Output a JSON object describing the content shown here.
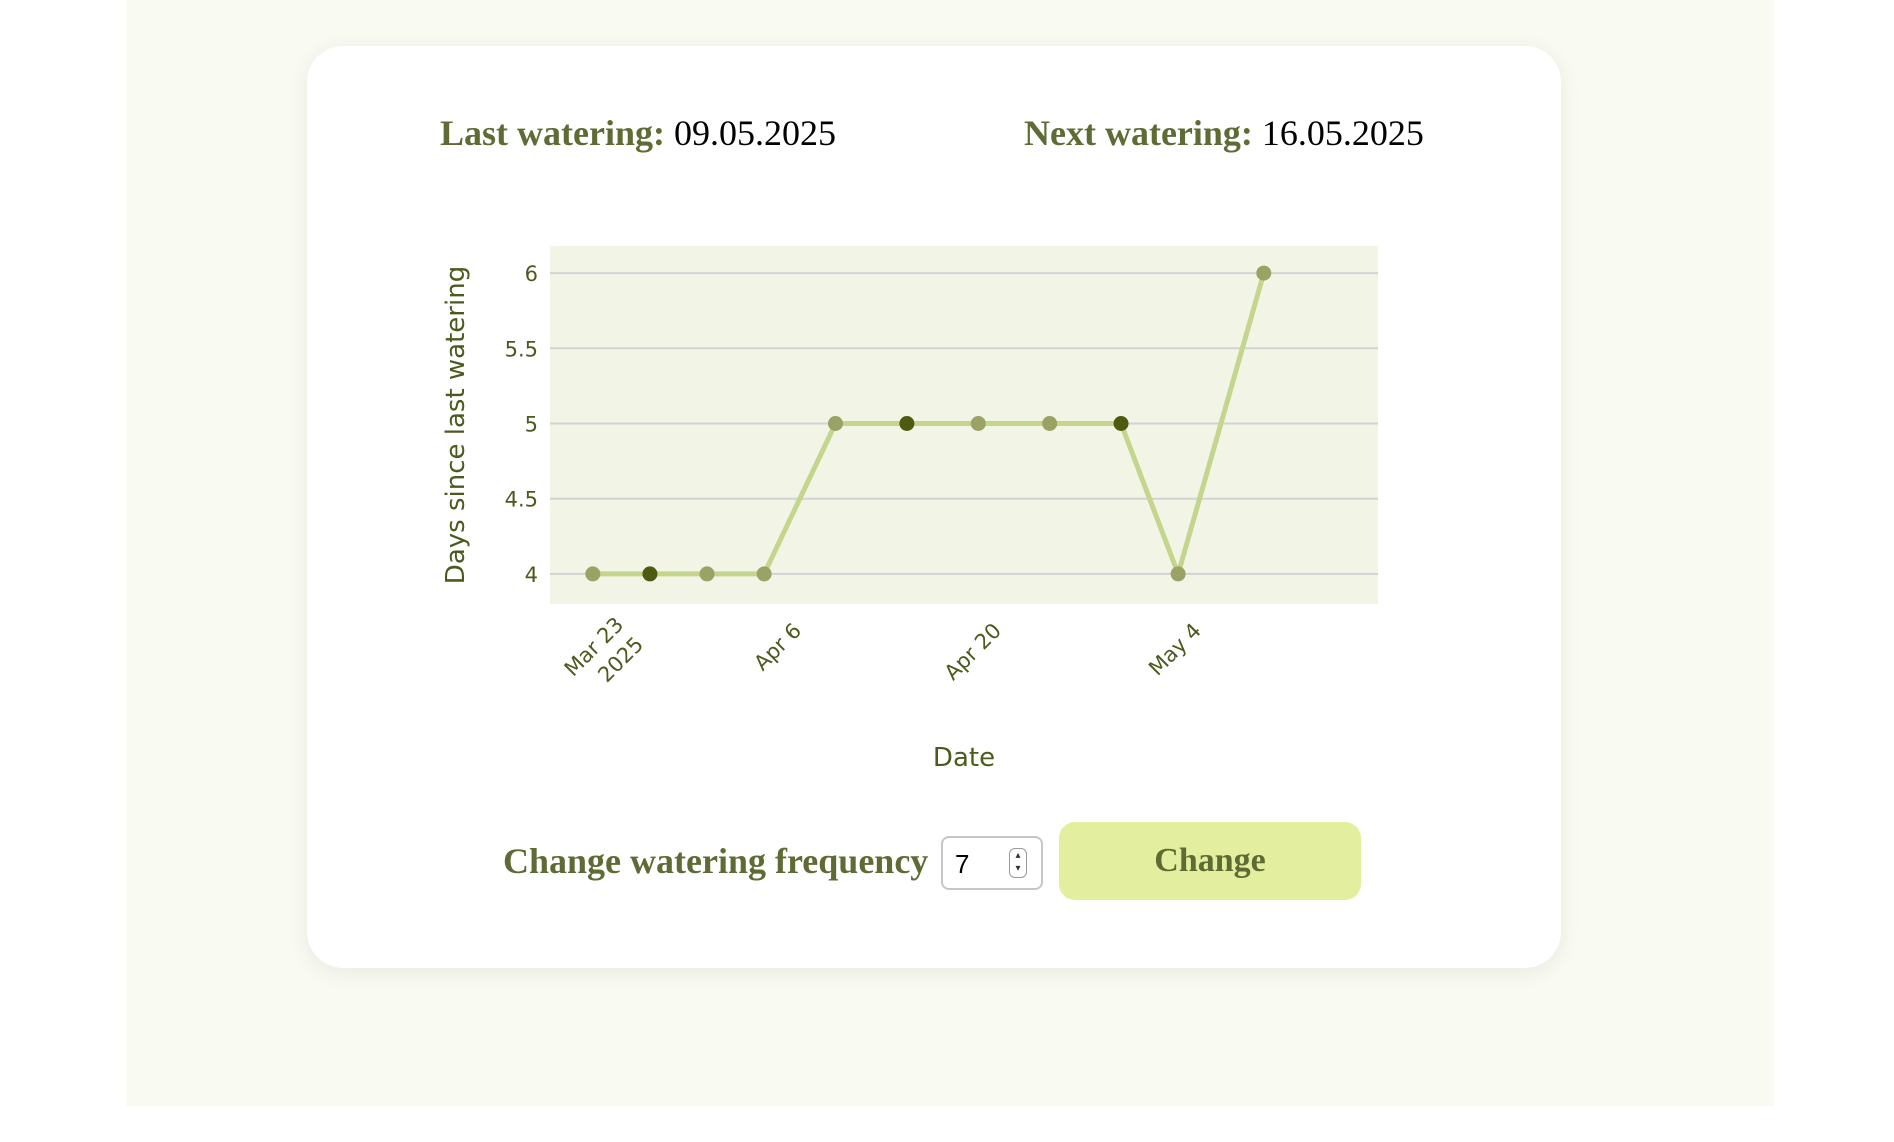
{
  "header": {
    "last_label": "Last watering:",
    "last_value": "09.05.2025",
    "next_label": "Next watering:",
    "next_value": "16.05.2025"
  },
  "frequency": {
    "label": "Change watering frequency",
    "value": "7",
    "button_label": "Change"
  },
  "colors": {
    "page_background": "#f9faf2",
    "plot_background": "#f2f5e6",
    "line": "#c5d58d",
    "point": "#9aa266",
    "point_highlight": "#4e5a0f",
    "label_text": "#5f6b34",
    "button_background": "#e3ef9f"
  },
  "chart_data": {
    "type": "line",
    "xlabel": "Date",
    "ylabel": "Days since last watering",
    "x_axis_type": "date",
    "xlim": [
      "2025-03-20",
      "2025-05-17"
    ],
    "ylim": [
      3.8,
      6.18
    ],
    "grid": true,
    "y_ticks": [
      4,
      4.5,
      5,
      5.5,
      6
    ],
    "y_tick_labels": [
      "4",
      "4.5",
      "5",
      "5.5",
      "6"
    ],
    "x_ticks": [
      "2025-03-23",
      "2025-04-06",
      "2025-04-20",
      "2025-05-04"
    ],
    "x_tick_labels": [
      [
        "Mar 23",
        "2025"
      ],
      [
        "Apr 6"
      ],
      [
        "Apr 20"
      ],
      [
        "May 4"
      ]
    ],
    "points": [
      {
        "x": "2025-03-23",
        "y": 4,
        "highlight": false
      },
      {
        "x": "2025-03-27",
        "y": 4,
        "highlight": true
      },
      {
        "x": "2025-03-31",
        "y": 4,
        "highlight": false
      },
      {
        "x": "2025-04-04",
        "y": 4,
        "highlight": false
      },
      {
        "x": "2025-04-09",
        "y": 5,
        "highlight": false
      },
      {
        "x": "2025-04-14",
        "y": 5,
        "highlight": true
      },
      {
        "x": "2025-04-19",
        "y": 5,
        "highlight": false
      },
      {
        "x": "2025-04-24",
        "y": 5,
        "highlight": false
      },
      {
        "x": "2025-04-29",
        "y": 5,
        "highlight": true
      },
      {
        "x": "2025-05-03",
        "y": 4,
        "highlight": false
      },
      {
        "x": "2025-05-09",
        "y": 6,
        "highlight": false
      }
    ]
  }
}
